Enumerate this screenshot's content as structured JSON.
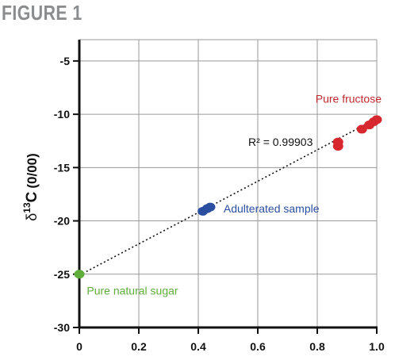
{
  "figure_label": "FIGURE 1",
  "chart_data": {
    "type": "scatter",
    "title": "",
    "xlabel": "",
    "ylabel": "δ13C (0/00)",
    "ylabel_parts": {
      "delta": "δ",
      "sup": "13",
      "main": "C",
      "unit": "(0/00)"
    },
    "xlim": [
      0,
      1.0
    ],
    "ylim": [
      -30,
      -5
    ],
    "x_ticks": [
      0,
      0.2,
      0.4,
      0.6,
      0.8,
      1.0
    ],
    "x_tick_labels": [
      "0",
      "0.2",
      "0.4",
      "0.6",
      "0.8",
      "1.0"
    ],
    "y_ticks": [
      -30,
      -25,
      -20,
      -15,
      -10,
      -5
    ],
    "y_tick_labels": [
      "-30",
      "-25",
      "-20",
      "-15",
      "-10",
      "-5"
    ],
    "grid": true,
    "series": [
      {
        "name": "Pure natural sugar",
        "color": "#5fae3c",
        "points": [
          {
            "x": 0.0,
            "y": -25.0
          }
        ]
      },
      {
        "name": "Adulterated sample",
        "color": "#2a4ea0",
        "points": [
          {
            "x": 0.415,
            "y": -19.1
          },
          {
            "x": 0.43,
            "y": -18.85
          },
          {
            "x": 0.44,
            "y": -18.7
          }
        ]
      },
      {
        "name": "Pure fructose",
        "color": "#d7282f",
        "points": [
          {
            "x": 0.87,
            "y": -12.6
          },
          {
            "x": 0.87,
            "y": -13.0
          },
          {
            "x": 0.95,
            "y": -11.4
          },
          {
            "x": 0.975,
            "y": -11.0
          },
          {
            "x": 0.99,
            "y": -10.7
          },
          {
            "x": 1.0,
            "y": -10.5
          }
        ]
      }
    ],
    "trendline": {
      "x": [
        0,
        1.0
      ],
      "y": [
        -25.1,
        -10.4
      ],
      "style": "dotted",
      "color": "#111111"
    },
    "annotations": [
      {
        "text": "Pure fructose",
        "color": "#c0282d",
        "x": 0.905,
        "y": -8.9,
        "anchor": "middle"
      },
      {
        "text": "R² = 0.99903",
        "color": "#111111",
        "x": 0.785,
        "y": -12.95,
        "anchor": "end"
      },
      {
        "text": "Adulterated sample",
        "color": "#2a4ea0",
        "x": 0.485,
        "y": -19.2,
        "anchor": "start"
      },
      {
        "text": "Pure natural sugar",
        "color": "#5fae3c",
        "x": 0.025,
        "y": -26.9,
        "anchor": "start"
      }
    ]
  }
}
